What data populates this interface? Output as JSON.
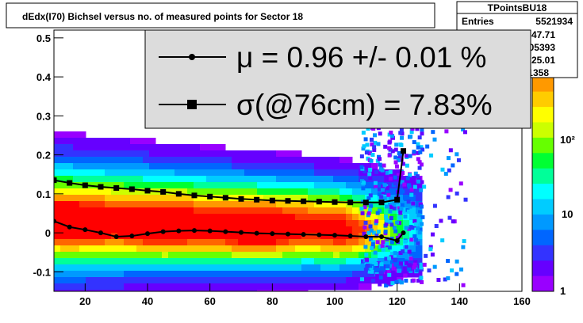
{
  "title": "dEdx(I70) Bichsel versus no. of measured points for Sector 18",
  "stats_box": {
    "name": "TPointsBU18",
    "rows": [
      {
        "label": "Entries",
        "value": "5521934"
      },
      {
        "label": "",
        "value": "47.71"
      },
      {
        "label": "",
        "value": "0.05393"
      },
      {
        "label": "",
        "value": "25.01"
      },
      {
        "label": "",
        "value": "0.1358"
      }
    ]
  },
  "legend": {
    "mu_text": "μ  =  0.96 +/-  0.01 %",
    "sigma_text": "σ(@76cm) =  7.83%"
  },
  "colorbar": {
    "labels": [
      "10²",
      "10",
      "1"
    ],
    "colors": [
      "#ff0000",
      "#ff3300",
      "#ff6600",
      "#ff9900",
      "#ffcc00",
      "#ffff00",
      "#ccff00",
      "#66ff00",
      "#00ff33",
      "#00ff99",
      "#00ffff",
      "#00ccff",
      "#0099ff",
      "#0066ff",
      "#3333ff",
      "#6600ff",
      "#9900ff"
    ]
  },
  "chart_data": {
    "type": "heatmap",
    "title": "dEdx(I70) Bichsel versus no. of measured points for Sector 18",
    "xlim": [
      10,
      160
    ],
    "ylim": [
      -0.15,
      0.52
    ],
    "x_ticks": [
      20,
      40,
      60,
      80,
      100,
      120,
      140,
      160
    ],
    "y_ticks": [
      -0.1,
      0,
      0.1,
      0.2,
      0.3,
      0.4,
      0.5
    ],
    "z_scale": "log",
    "series": [
      {
        "marker": "square",
        "x": [
          10,
          15,
          20,
          25,
          30,
          35,
          40,
          45,
          50,
          55,
          60,
          65,
          70,
          75,
          80,
          85,
          90,
          95,
          100,
          105,
          110,
          115,
          120,
          122
        ],
        "y": [
          0.135,
          0.128,
          0.122,
          0.118,
          0.115,
          0.112,
          0.108,
          0.105,
          0.1,
          0.096,
          0.093,
          0.09,
          0.087,
          0.085,
          0.083,
          0.082,
          0.081,
          0.08,
          0.079,
          0.078,
          0.078,
          0.078,
          0.085,
          0.21
        ]
      },
      {
        "marker": "circle",
        "x": [
          10,
          15,
          20,
          25,
          30,
          35,
          40,
          45,
          50,
          55,
          60,
          65,
          70,
          75,
          80,
          85,
          90,
          95,
          100,
          105,
          110,
          115,
          120,
          122
        ],
        "y": [
          0.03,
          0.015,
          0.008,
          0.0,
          -0.01,
          -0.008,
          -0.002,
          0.003,
          0.005,
          0.006,
          0.005,
          0.003,
          0.001,
          -0.001,
          -0.002,
          -0.003,
          -0.004,
          -0.005,
          -0.006,
          -0.008,
          -0.01,
          -0.01,
          -0.02,
          0.0
        ]
      }
    ]
  }
}
